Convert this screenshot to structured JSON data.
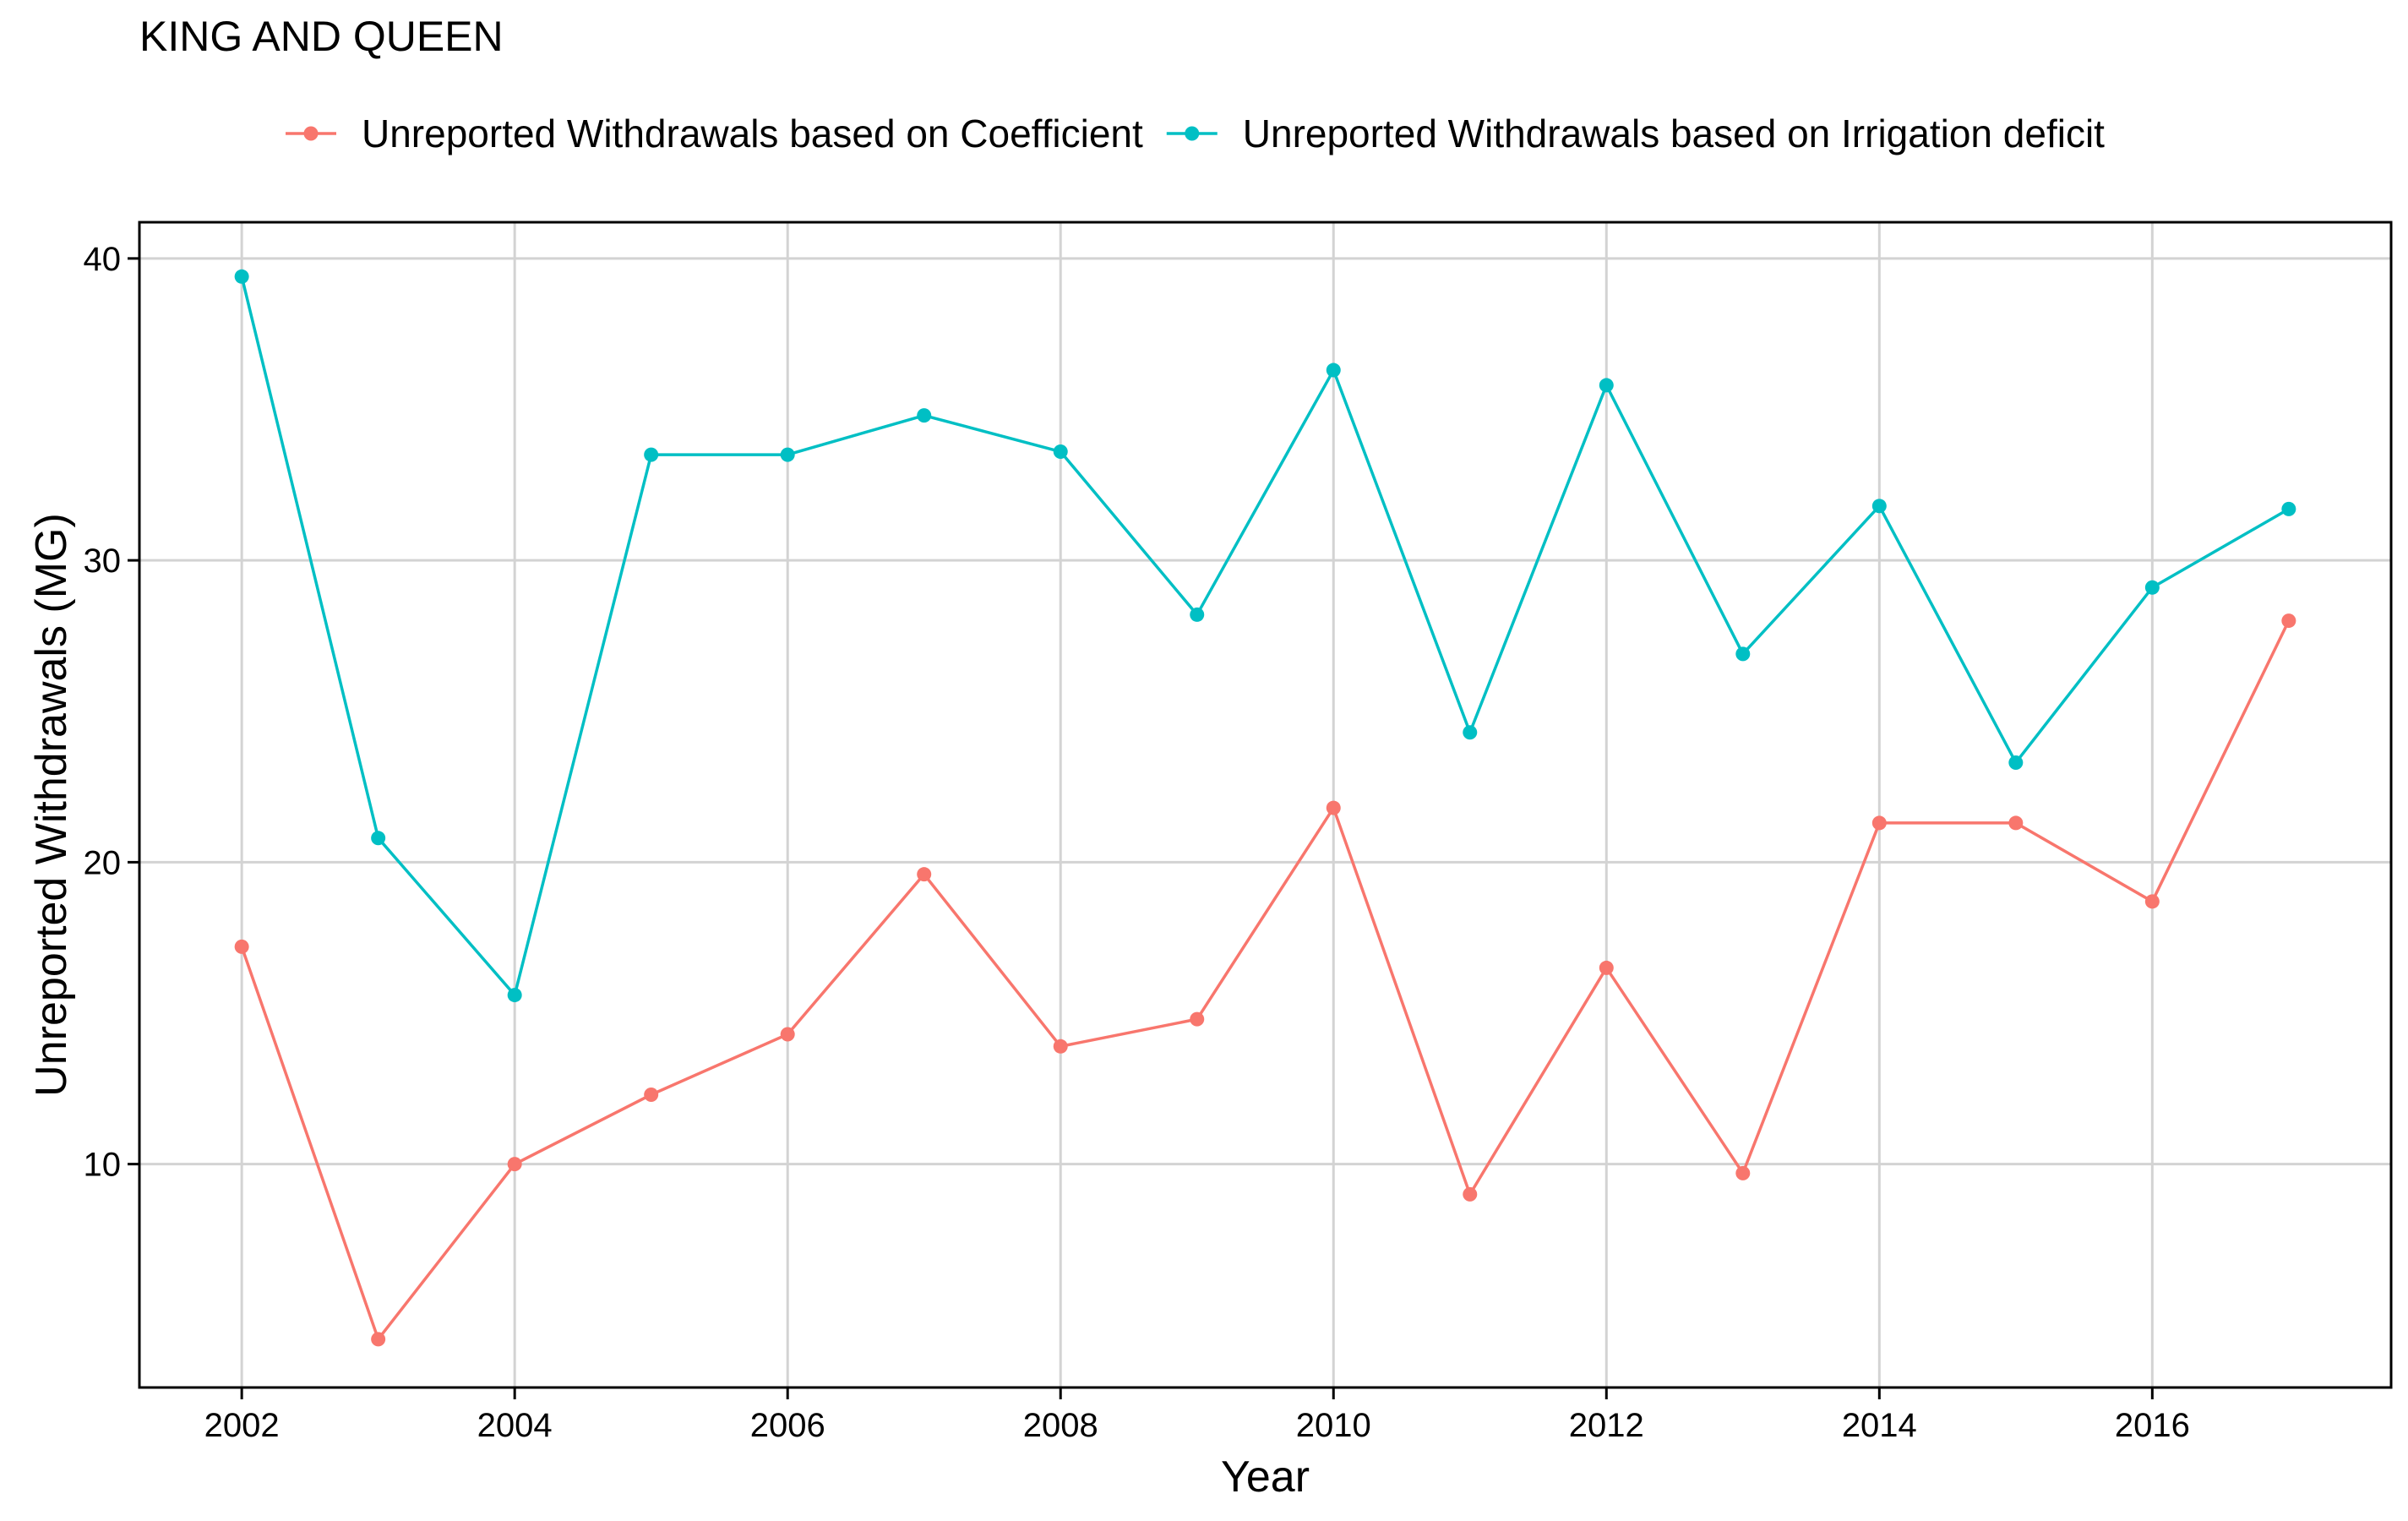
{
  "chart_data": {
    "type": "line",
    "title": "KING AND QUEEN",
    "xlabel": "Year",
    "ylabel": "Unreported Withdrawals (MG)",
    "x_ticks": [
      2002,
      2004,
      2006,
      2008,
      2010,
      2012,
      2014,
      2016
    ],
    "y_ticks": [
      10,
      20,
      30,
      40
    ],
    "xlim": [
      2001.25,
      2017.75
    ],
    "ylim": [
      2.6,
      41.2
    ],
    "grid": true,
    "legend_position": "top",
    "x": [
      2002,
      2003,
      2004,
      2005,
      2006,
      2007,
      2008,
      2009,
      2010,
      2011,
      2012,
      2013,
      2014,
      2015,
      2016,
      2017
    ],
    "series": [
      {
        "name": "Unreported Withdrawals based on Coefficient",
        "color": "#F8766D",
        "values": [
          17.2,
          4.2,
          10.0,
          12.3,
          14.3,
          19.6,
          13.9,
          14.8,
          21.8,
          9.0,
          16.5,
          9.7,
          21.3,
          21.3,
          18.7,
          28.0
        ]
      },
      {
        "name": "Unreported Withdrawals based on Irrigation deficit",
        "color": "#00BFC4",
        "values": [
          39.4,
          20.8,
          15.6,
          33.5,
          33.5,
          34.8,
          33.6,
          28.2,
          36.3,
          24.3,
          35.8,
          26.9,
          31.8,
          23.3,
          29.1,
          31.7
        ]
      }
    ]
  }
}
